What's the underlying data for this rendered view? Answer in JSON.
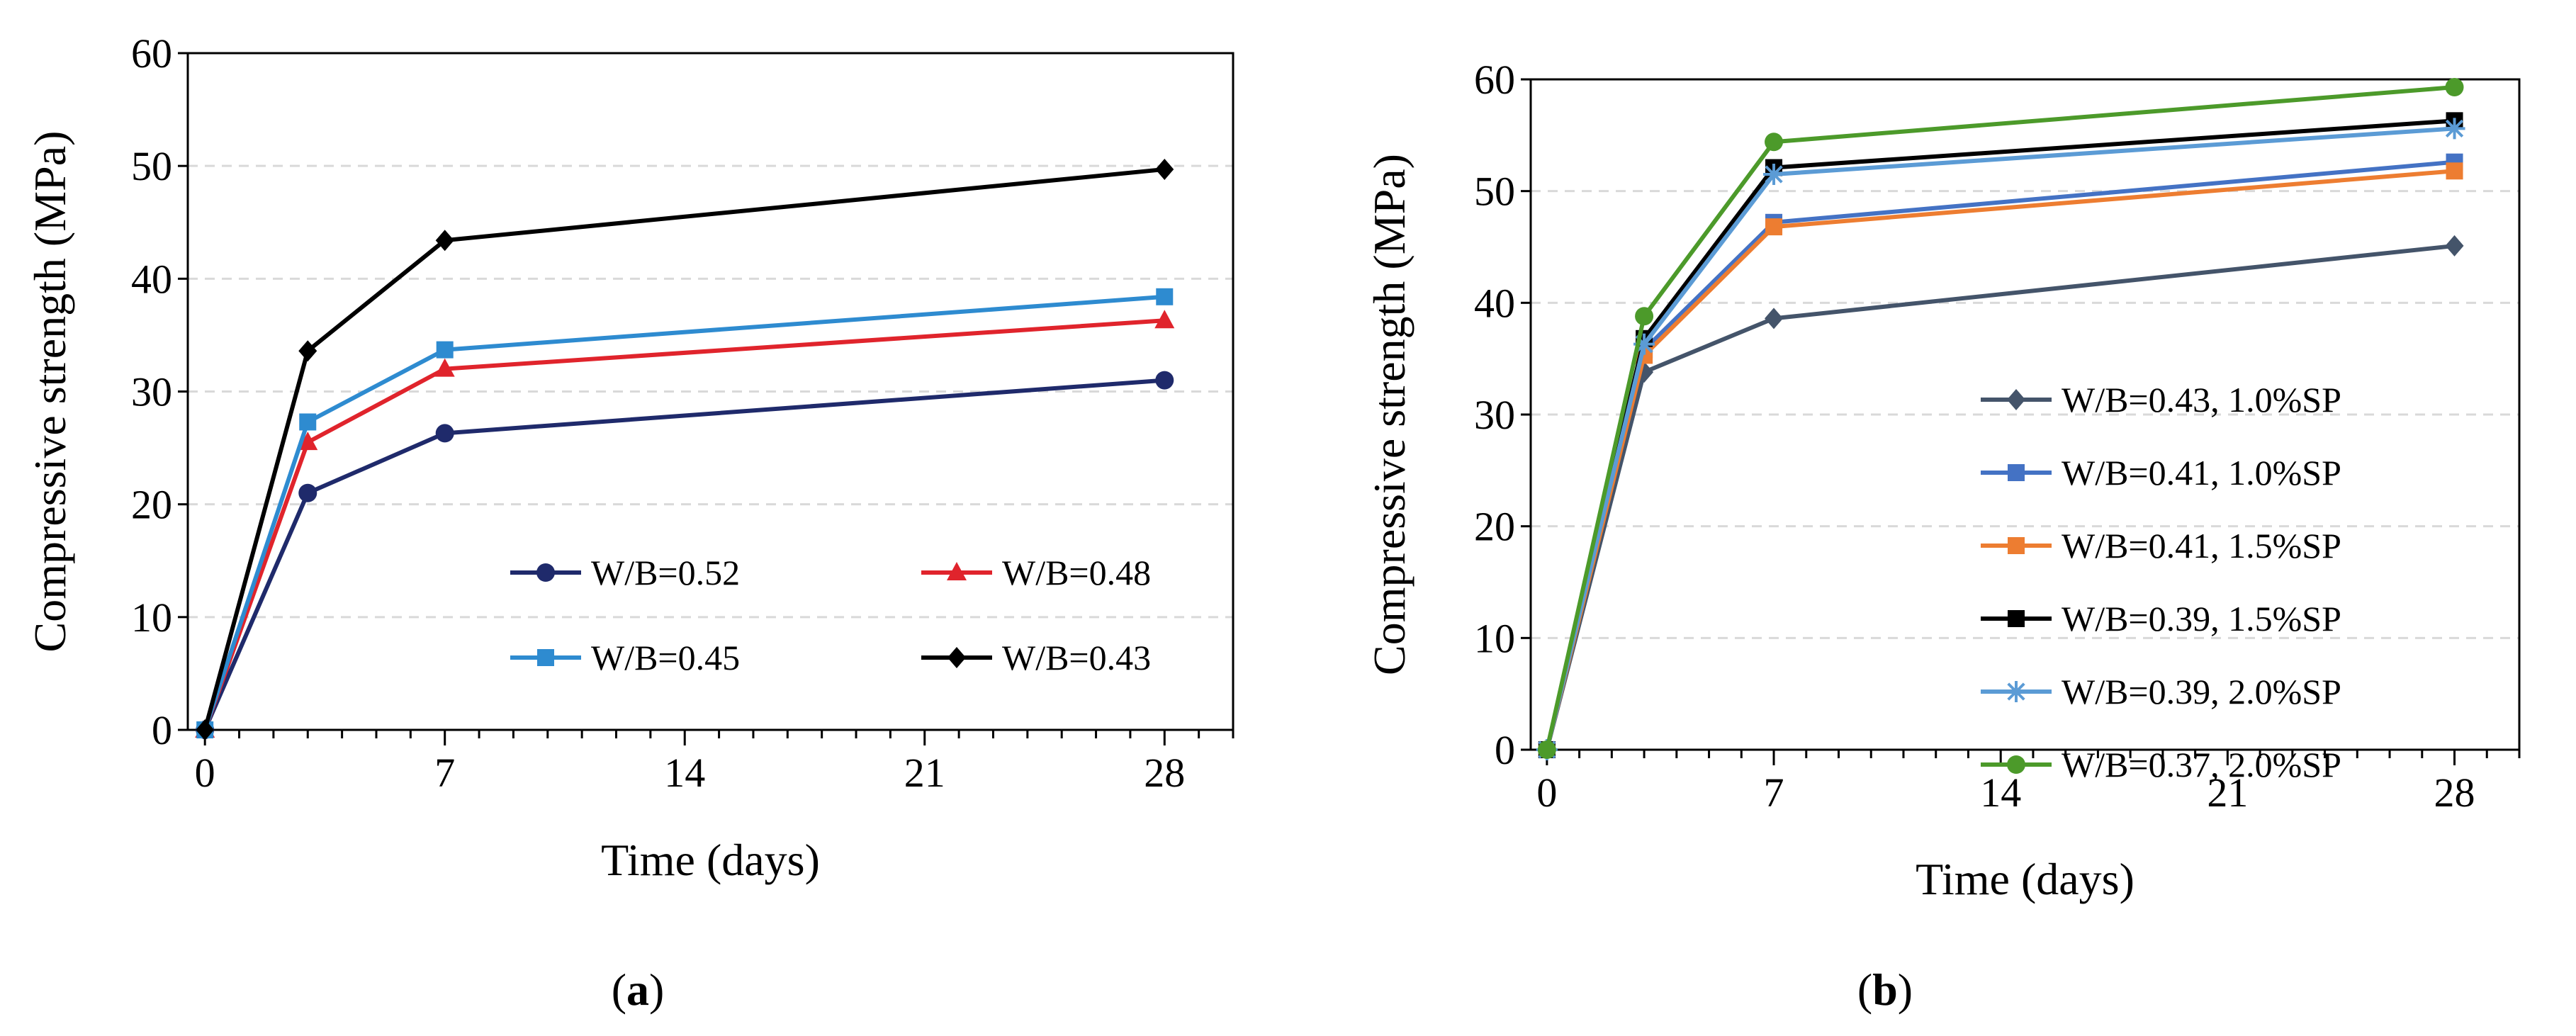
{
  "chart_data": [
    {
      "type": "line",
      "panel": "a",
      "panel_label_open": "(",
      "panel_label_letter": "a",
      "panel_label_close": ")",
      "title": "",
      "xlabel": "Time (days)",
      "ylabel": "Compressive strength (MPa)",
      "xlim": [
        -0.5,
        30
      ],
      "ylim": [
        0,
        60
      ],
      "xticks": [
        0,
        7,
        14,
        21,
        28
      ],
      "yticks": [
        0,
        10,
        20,
        30,
        40,
        50,
        60
      ],
      "grid": "horizontal dashed",
      "legend_position": "bottom-right, two columns",
      "x": [
        0,
        3,
        7,
        28
      ],
      "series": [
        {
          "name": "W/B=0.52",
          "values": [
            0,
            21.0,
            26.3,
            31.0
          ],
          "color": "#1f2a6b",
          "marker": "circle"
        },
        {
          "name": "W/B=0.48",
          "values": [
            0,
            25.5,
            32.0,
            36.3
          ],
          "color": "#e0242c",
          "marker": "triangle"
        },
        {
          "name": "W/B=0.45",
          "values": [
            0,
            27.3,
            33.7,
            38.4
          ],
          "color": "#2e8bd0",
          "marker": "square"
        },
        {
          "name": "W/B=0.43",
          "values": [
            0,
            33.6,
            43.4,
            49.7
          ],
          "color": "#000000",
          "marker": "diamond"
        }
      ]
    },
    {
      "type": "line",
      "panel": "b",
      "panel_label_open": "(",
      "panel_label_letter": "b",
      "panel_label_close": ")",
      "title": "",
      "xlabel": "Time (days)",
      "ylabel": "Compressive strength (MPa)",
      "xlim": [
        -0.5,
        30
      ],
      "ylim": [
        0,
        60
      ],
      "xticks": [
        0,
        7,
        14,
        21,
        28
      ],
      "yticks": [
        0,
        10,
        20,
        30,
        40,
        50,
        60
      ],
      "grid": "horizontal dashed",
      "legend_position": "center-right",
      "x": [
        0,
        3,
        7,
        28
      ],
      "series": [
        {
          "name": "W/B=0.43, 1.0%SP",
          "values": [
            0,
            33.8,
            38.6,
            45.1
          ],
          "color": "#44546a",
          "marker": "diamond"
        },
        {
          "name": "W/B=0.41, 1.0%SP",
          "values": [
            0,
            35.8,
            47.2,
            52.6
          ],
          "color": "#4472c4",
          "marker": "square"
        },
        {
          "name": "W/B=0.41, 1.5%SP",
          "values": [
            0,
            35.3,
            46.8,
            51.8
          ],
          "color": "#ed7d31",
          "marker": "square"
        },
        {
          "name": "W/B=0.39, 1.5%SP",
          "values": [
            0,
            36.8,
            52.1,
            56.3
          ],
          "color": "#000000",
          "marker": "square"
        },
        {
          "name": "W/B=0.39, 2.0%SP",
          "values": [
            0,
            36.3,
            51.5,
            55.6
          ],
          "color": "#5b9bd5",
          "marker": "asterisk"
        },
        {
          "name": "W/B=0.37, 2.0%SP",
          "values": [
            0,
            38.8,
            54.4,
            59.3
          ],
          "color": "#4c9a2a",
          "marker": "circle"
        }
      ]
    }
  ]
}
